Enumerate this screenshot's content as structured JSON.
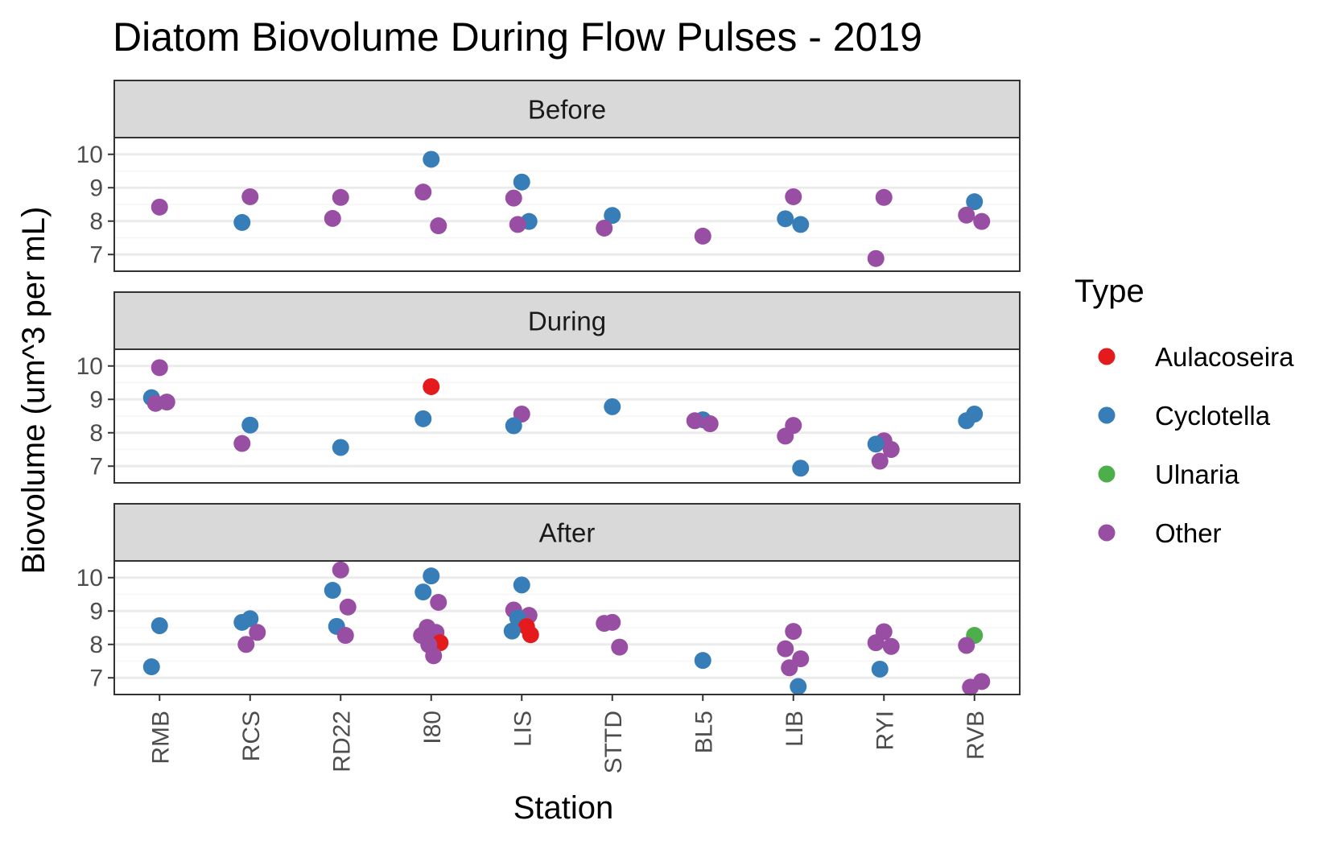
{
  "chart_data": {
    "type": "scatter",
    "title": "Diatom Biovolume During Flow Pulses - 2019",
    "xlabel": "Station",
    "ylabel": "Biovolume (um^3 per mL)",
    "categories": [
      "RMB",
      "RCS",
      "RD22",
      "I80",
      "LIS",
      "STTD",
      "BL5",
      "LIB",
      "RYI",
      "RVB"
    ],
    "ylim": [
      6.5,
      10.5
    ],
    "yticks": [
      "7",
      "8",
      "9",
      "10"
    ],
    "grid": true,
    "legend": {
      "title": "Type",
      "placement": "right",
      "entries": [
        {
          "label": "Aulacoseira",
          "color": "#e41a1c"
        },
        {
          "label": "Cyclotella",
          "color": "#377eb8"
        },
        {
          "label": "Ulnaria",
          "color": "#4daf4a"
        },
        {
          "label": "Other",
          "color": "#984ea3"
        }
      ]
    },
    "panels": [
      {
        "label": "Before",
        "points": [
          {
            "station": "RMB",
            "type": "Other",
            "y": 8.42
          },
          {
            "station": "RCS",
            "type": "Other",
            "y": 8.73
          },
          {
            "station": "RCS",
            "type": "Cyclotella",
            "y": 7.96
          },
          {
            "station": "RD22",
            "type": "Other",
            "y": 8.71
          },
          {
            "station": "RD22",
            "type": "Other",
            "y": 8.08
          },
          {
            "station": "I80",
            "type": "Cyclotella",
            "y": 9.85
          },
          {
            "station": "I80",
            "type": "Other",
            "y": 8.87
          },
          {
            "station": "I80",
            "type": "Other",
            "y": 7.86
          },
          {
            "station": "LIS",
            "type": "Cyclotella",
            "y": 9.17
          },
          {
            "station": "LIS",
            "type": "Other",
            "y": 8.69
          },
          {
            "station": "LIS",
            "type": "Cyclotella",
            "y": 7.99
          },
          {
            "station": "LIS",
            "type": "Other",
            "y": 7.9
          },
          {
            "station": "STTD",
            "type": "Cyclotella",
            "y": 8.17
          },
          {
            "station": "STTD",
            "type": "Other",
            "y": 7.79
          },
          {
            "station": "BL5",
            "type": "Other",
            "y": 7.55
          },
          {
            "station": "LIB",
            "type": "Other",
            "y": 8.73
          },
          {
            "station": "LIB",
            "type": "Cyclotella",
            "y": 8.07
          },
          {
            "station": "LIB",
            "type": "Cyclotella",
            "y": 7.9
          },
          {
            "station": "RYI",
            "type": "Other",
            "y": 8.71
          },
          {
            "station": "RYI",
            "type": "Other",
            "y": 6.88
          },
          {
            "station": "RVB",
            "type": "Cyclotella",
            "y": 8.58
          },
          {
            "station": "RVB",
            "type": "Other",
            "y": 8.18
          },
          {
            "station": "RVB",
            "type": "Other",
            "y": 7.99
          }
        ]
      },
      {
        "label": "During",
        "points": [
          {
            "station": "RMB",
            "type": "Other",
            "y": 9.95
          },
          {
            "station": "RMB",
            "type": "Cyclotella",
            "y": 9.05
          },
          {
            "station": "RMB",
            "type": "Other",
            "y": 8.92
          },
          {
            "station": "RMB",
            "type": "Other",
            "y": 8.88
          },
          {
            "station": "RCS",
            "type": "Cyclotella",
            "y": 8.23
          },
          {
            "station": "RCS",
            "type": "Other",
            "y": 7.68
          },
          {
            "station": "RD22",
            "type": "Cyclotella",
            "y": 7.56
          },
          {
            "station": "I80",
            "type": "Aulacoseira",
            "y": 9.38
          },
          {
            "station": "I80",
            "type": "Cyclotella",
            "y": 8.42
          },
          {
            "station": "LIS",
            "type": "Other",
            "y": 8.56
          },
          {
            "station": "LIS",
            "type": "Cyclotella",
            "y": 8.21
          },
          {
            "station": "STTD",
            "type": "Cyclotella",
            "y": 8.78
          },
          {
            "station": "BL5",
            "type": "Cyclotella",
            "y": 8.39
          },
          {
            "station": "BL5",
            "type": "Other",
            "y": 8.36
          },
          {
            "station": "BL5",
            "type": "Other",
            "y": 8.27
          },
          {
            "station": "LIB",
            "type": "Other",
            "y": 8.22
          },
          {
            "station": "LIB",
            "type": "Other",
            "y": 7.9
          },
          {
            "station": "LIB",
            "type": "Cyclotella",
            "y": 6.94
          },
          {
            "station": "RYI",
            "type": "Other",
            "y": 7.76
          },
          {
            "station": "RYI",
            "type": "Cyclotella",
            "y": 7.66
          },
          {
            "station": "RYI",
            "type": "Other",
            "y": 7.5
          },
          {
            "station": "RYI",
            "type": "Other",
            "y": 7.15
          },
          {
            "station": "RVB",
            "type": "Cyclotella",
            "y": 8.56
          },
          {
            "station": "RVB",
            "type": "Cyclotella",
            "y": 8.36
          }
        ]
      },
      {
        "label": "After",
        "points": [
          {
            "station": "RMB",
            "type": "Cyclotella",
            "y": 8.56
          },
          {
            "station": "RMB",
            "type": "Cyclotella",
            "y": 7.33
          },
          {
            "station": "RCS",
            "type": "Cyclotella",
            "y": 8.77
          },
          {
            "station": "RCS",
            "type": "Cyclotella",
            "y": 8.66
          },
          {
            "station": "RCS",
            "type": "Other",
            "y": 8.36
          },
          {
            "station": "RCS",
            "type": "Other",
            "y": 8.0
          },
          {
            "station": "RD22",
            "type": "Other",
            "y": 10.23
          },
          {
            "station": "RD22",
            "type": "Cyclotella",
            "y": 9.62
          },
          {
            "station": "RD22",
            "type": "Other",
            "y": 9.12
          },
          {
            "station": "RD22",
            "type": "Cyclotella",
            "y": 8.54
          },
          {
            "station": "RD22",
            "type": "Other",
            "y": 8.27
          },
          {
            "station": "I80",
            "type": "Cyclotella",
            "y": 10.05
          },
          {
            "station": "I80",
            "type": "Cyclotella",
            "y": 9.57
          },
          {
            "station": "I80",
            "type": "Other",
            "y": 9.26
          },
          {
            "station": "I80",
            "type": "Other",
            "y": 8.51
          },
          {
            "station": "I80",
            "type": "Other",
            "y": 8.36
          },
          {
            "station": "I80",
            "type": "Other",
            "y": 8.27
          },
          {
            "station": "I80",
            "type": "Aulacoseira",
            "y": 8.05
          },
          {
            "station": "I80",
            "type": "Other",
            "y": 7.99
          },
          {
            "station": "I80",
            "type": "Other",
            "y": 7.66
          },
          {
            "station": "LIS",
            "type": "Cyclotella",
            "y": 9.78
          },
          {
            "station": "LIS",
            "type": "Other",
            "y": 9.03
          },
          {
            "station": "LIS",
            "type": "Other",
            "y": 8.87
          },
          {
            "station": "LIS",
            "type": "Cyclotella",
            "y": 8.79
          },
          {
            "station": "LIS",
            "type": "Aulacoseira",
            "y": 8.53
          },
          {
            "station": "LIS",
            "type": "Cyclotella",
            "y": 8.4
          },
          {
            "station": "LIS",
            "type": "Aulacoseira",
            "y": 8.29
          },
          {
            "station": "STTD",
            "type": "Other",
            "y": 8.66
          },
          {
            "station": "STTD",
            "type": "Other",
            "y": 8.63
          },
          {
            "station": "STTD",
            "type": "Other",
            "y": 7.92
          },
          {
            "station": "BL5",
            "type": "Cyclotella",
            "y": 7.52
          },
          {
            "station": "LIB",
            "type": "Other",
            "y": 8.39
          },
          {
            "station": "LIB",
            "type": "Other",
            "y": 7.87
          },
          {
            "station": "LIB",
            "type": "Other",
            "y": 7.57
          },
          {
            "station": "LIB",
            "type": "Other",
            "y": 7.3
          },
          {
            "station": "LIB",
            "type": "Cyclotella",
            "y": 6.74
          },
          {
            "station": "RYI",
            "type": "Other",
            "y": 8.38
          },
          {
            "station": "RYI",
            "type": "Other",
            "y": 8.05
          },
          {
            "station": "RYI",
            "type": "Other",
            "y": 7.94
          },
          {
            "station": "RYI",
            "type": "Cyclotella",
            "y": 7.26
          },
          {
            "station": "RVB",
            "type": "Ulnaria",
            "y": 8.27
          },
          {
            "station": "RVB",
            "type": "Other",
            "y": 7.97
          },
          {
            "station": "RVB",
            "type": "Other",
            "y": 6.89
          },
          {
            "station": "RVB",
            "type": "Other",
            "y": 6.72
          }
        ]
      }
    ]
  }
}
